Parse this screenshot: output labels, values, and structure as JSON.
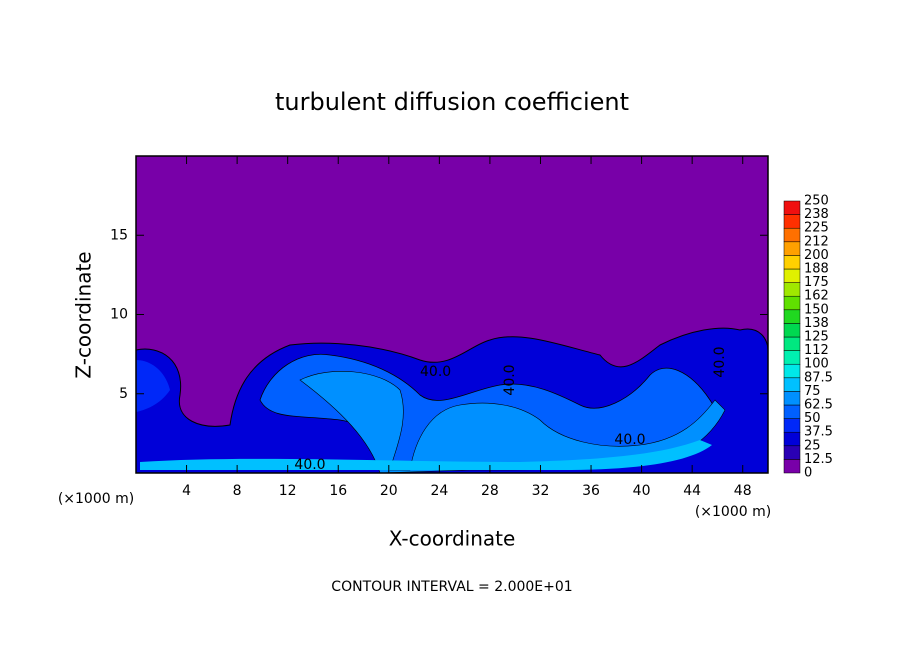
{
  "chart_data": {
    "type": "contour",
    "title": "turbulent diffusion coefficient",
    "xlabel": "X-coordinate",
    "ylabel": "Z-coordinate",
    "axis_unit": "(×1000 m)",
    "xlim": [
      0,
      50
    ],
    "xticks": [
      4,
      8,
      12,
      16,
      20,
      24,
      28,
      32,
      36,
      40,
      44,
      48
    ],
    "ylim": [
      0,
      20
    ],
    "yticks": [
      5,
      10,
      15
    ],
    "contour_labels": [
      "40.0",
      "40.0",
      "40.0",
      "40.0",
      "40.0"
    ],
    "footer": "CONTOUR INTERVAL = 2.000E+01",
    "colorbar": {
      "levels": [
        0,
        12.5,
        25,
        37.5,
        50,
        62.5,
        75,
        87.5,
        100,
        {
          "value": 112.5,
          "label": "112"
        },
        125,
        {
          "value": 137.5,
          "label": "138"
        },
        150,
        {
          "value": 162.5,
          "label": "162"
        },
        175,
        {
          "value": 187.5,
          "label": "188"
        },
        200,
        {
          "value": 212.5,
          "label": "212"
        },
        225,
        {
          "value": 237.5,
          "label": "238"
        },
        250
      ],
      "colors": [
        "#7800a8",
        "#2a00b4",
        "#0000d8",
        "#0028f8",
        "#0060ff",
        "#0090ff",
        "#00c0ff",
        "#00e8e8",
        "#00f0b0",
        "#00e880",
        "#00d850",
        "#20d820",
        "#60e000",
        "#a0e800",
        "#e0f000",
        "#ffd000",
        "#ffa000",
        "#ff7000",
        "#ff3000",
        "#f01010",
        "#f08080"
      ]
    }
  }
}
